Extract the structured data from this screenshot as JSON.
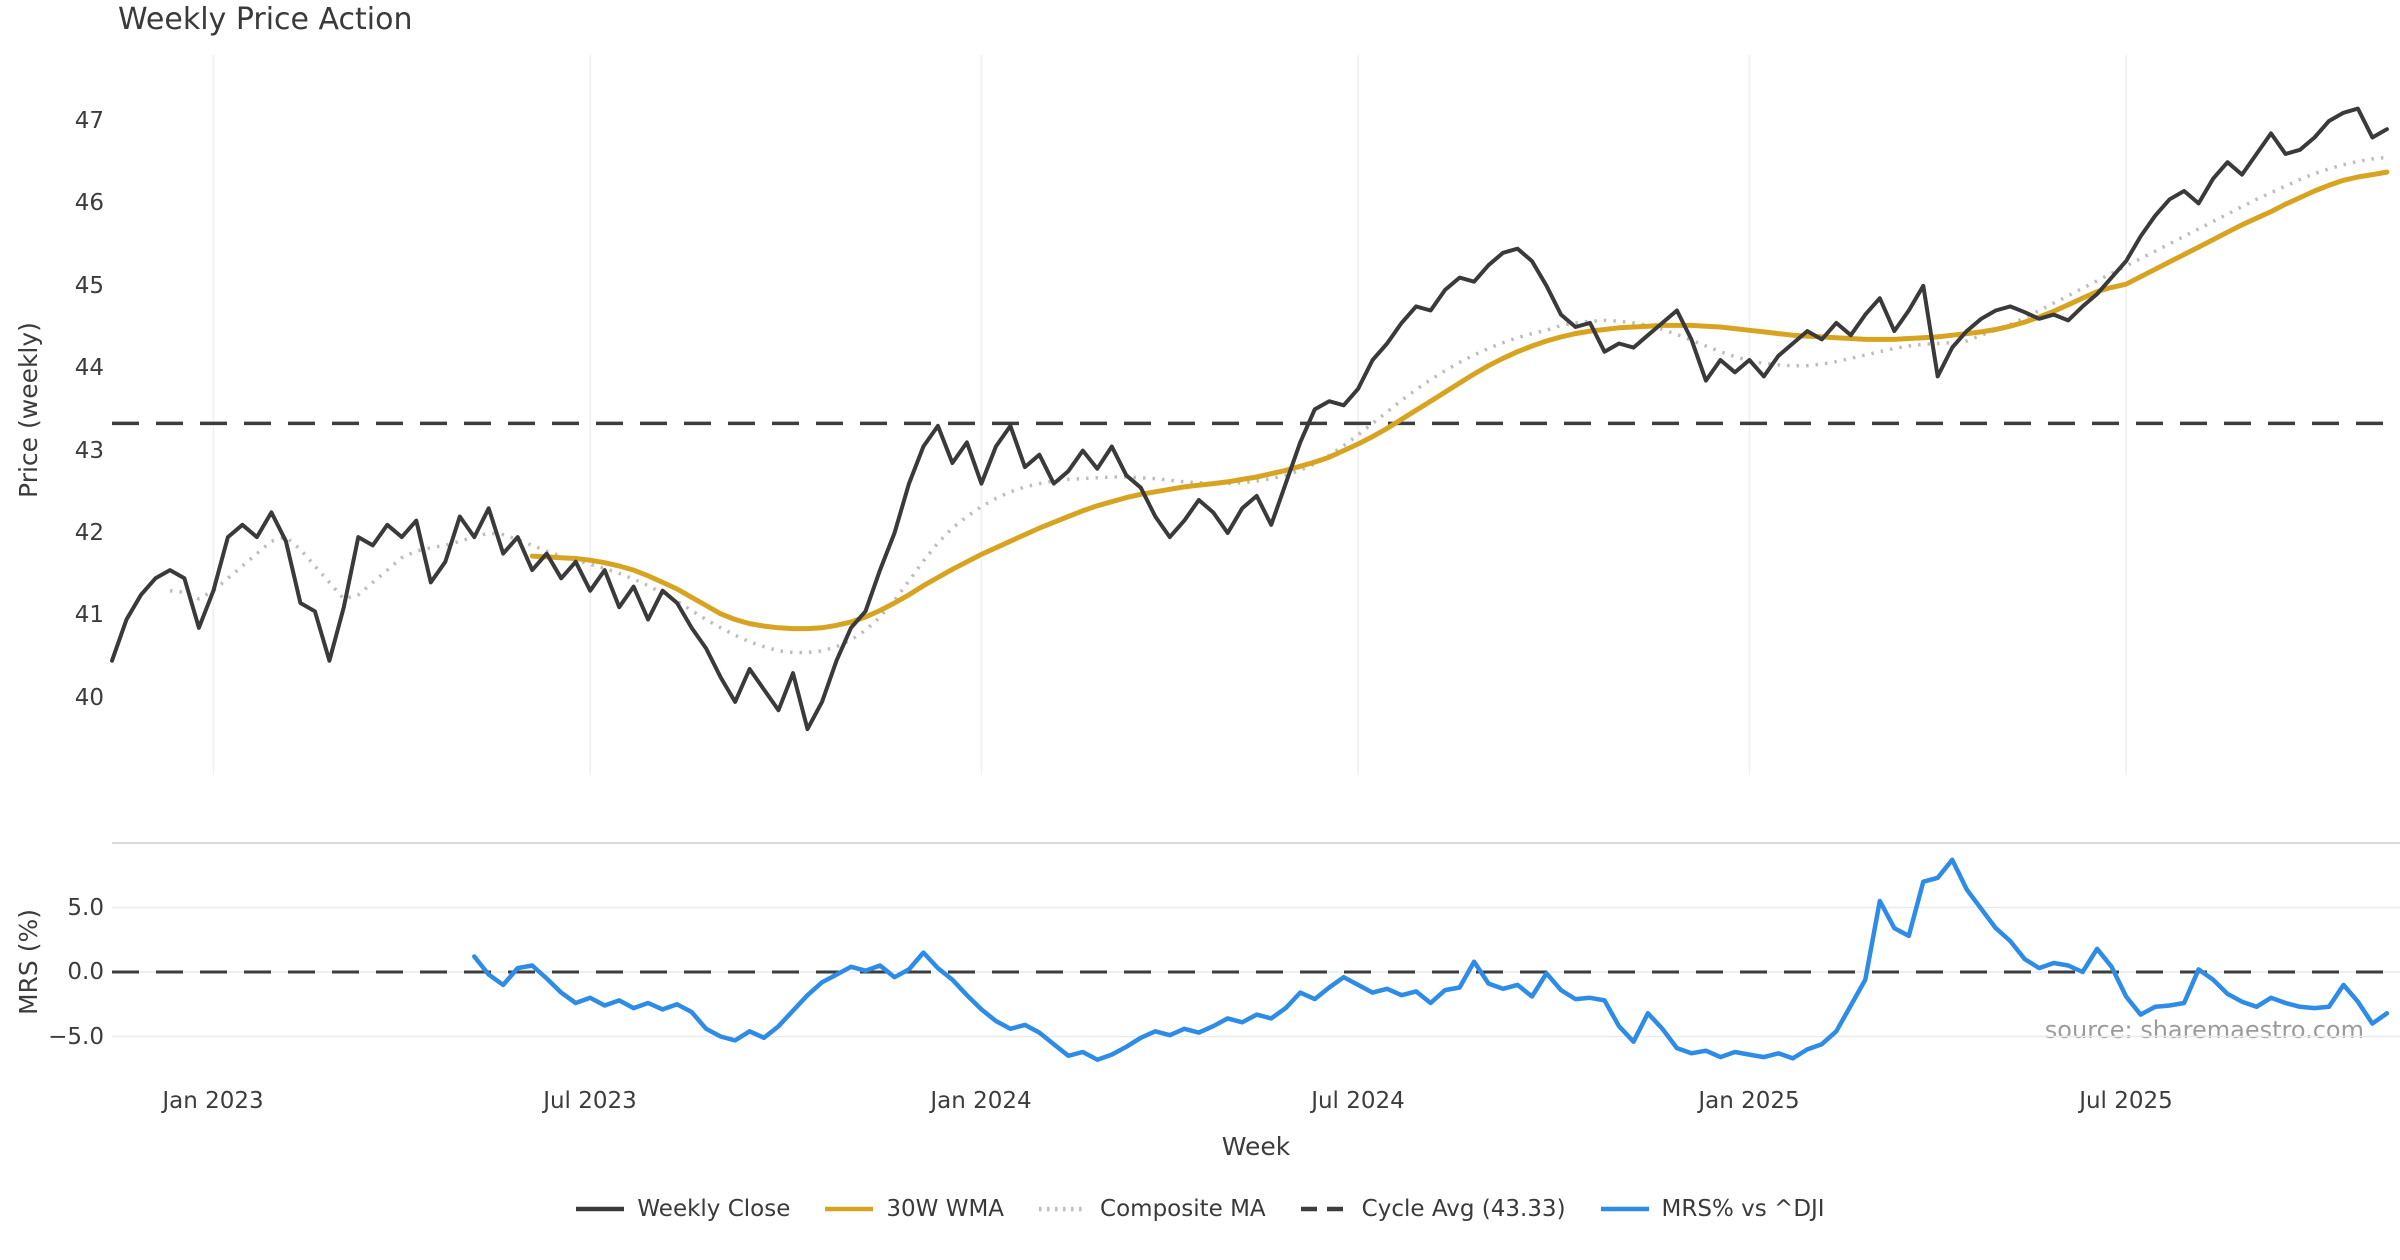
{
  "title": "Weekly Price Action",
  "source_credit": "source: sharemaestro.com",
  "colors": {
    "close": "#3a3a3a",
    "wma": "#d7a422",
    "composite": "#bdbdbd",
    "cycle_avg": "#3d3d3d",
    "mrs": "#2e8ce6",
    "vertical_grid": "#eef0f4",
    "mrs_grid": "#eaeaea",
    "mrs_grid_top": "#d4d4d4",
    "text": "#3c3c3c",
    "source_text": "#9b9b9b"
  },
  "legend": {
    "items": [
      {
        "id": "weekly-close",
        "label": "Weekly Close",
        "color": "#3a3a3a",
        "style": "solid"
      },
      {
        "id": "wma-30w",
        "label": "30W WMA",
        "color": "#d7a422",
        "style": "solid"
      },
      {
        "id": "composite-ma",
        "label": "Composite MA",
        "color": "#bdbdbd",
        "style": "dotted"
      },
      {
        "id": "cycle-avg",
        "label": "Cycle Avg (43.33)",
        "color": "#3d3d3d",
        "style": "dashed"
      },
      {
        "id": "mrs-vs-dji",
        "label": "MRS% vs ^DJI",
        "color": "#2e8ce6",
        "style": "solid"
      }
    ]
  },
  "chart_data": {
    "type": "line",
    "title": "Weekly Price Action",
    "xlabel": "Week",
    "x_tick_labels": [
      "Jan 2023",
      "Jul 2023",
      "Jan 2024",
      "Jul 2024",
      "Jan 2025",
      "Jul 2025"
    ],
    "x_tick_weeks": [
      7,
      33,
      60,
      86,
      113,
      139
    ],
    "x_unit": "week-index",
    "panels": [
      {
        "ylabel": "Price (weekly)",
        "ylim": [
          39.3,
          47.8
        ],
        "yticks": [
          40,
          41,
          42,
          43,
          44,
          45,
          46,
          47
        ],
        "cycle_avg": 43.33,
        "grid": "vertical-only",
        "series": [
          {
            "name": "Composite MA",
            "color": "#bdbdbd",
            "style": "dotted",
            "width": 3.5,
            "start_week": 4,
            "values": [
              41.3,
              41.28,
              41.2,
              41.3,
              41.45,
              41.6,
              41.75,
              41.9,
              41.95,
              41.8,
              41.6,
              41.4,
              41.2,
              41.25,
              41.4,
              41.55,
              41.7,
              41.78,
              41.82,
              41.85,
              41.9,
              41.95,
              42.0,
              41.98,
              41.92,
              41.85,
              41.78,
              41.72,
              41.67,
              41.62,
              41.57,
              41.51,
              41.44,
              41.36,
              41.27,
              41.17,
              41.06,
              40.95,
              40.85,
              40.76,
              40.68,
              40.62,
              40.57,
              40.55,
              40.55,
              40.57,
              40.62,
              40.7,
              40.82,
              40.98,
              41.18,
              41.42,
              41.66,
              41.88,
              42.06,
              42.2,
              42.32,
              42.42,
              42.5,
              42.56,
              42.6,
              42.63,
              42.65,
              42.66,
              42.67,
              42.68,
              42.68,
              42.67,
              42.66,
              42.64,
              42.62,
              42.61,
              42.6,
              42.6,
              42.61,
              42.63,
              42.66,
              42.7,
              42.76,
              42.84,
              42.94,
              43.06,
              43.19,
              43.33,
              43.47,
              43.61,
              43.74,
              43.86,
              43.97,
              44.07,
              44.16,
              44.24,
              44.31,
              44.37,
              44.42,
              44.46,
              44.52,
              44.55,
              44.57,
              44.58,
              44.57,
              44.55,
              44.52,
              44.47,
              44.41,
              44.34,
              44.27,
              44.2,
              44.14,
              44.09,
              44.06,
              44.04,
              44.03,
              44.03,
              44.05,
              44.08,
              44.12,
              44.16,
              44.2,
              44.24,
              44.27,
              44.29,
              44.3,
              44.31,
              44.33,
              44.4,
              44.46,
              44.53,
              44.61,
              44.7,
              44.79,
              44.88,
              44.97,
              45.06,
              45.15,
              45.24,
              45.33,
              45.42,
              45.51,
              45.6,
              45.69,
              45.78,
              45.87,
              45.96,
              46.05,
              46.13,
              46.21,
              46.29,
              46.36,
              46.42,
              46.47,
              46.51,
              46.54,
              46.56
            ]
          },
          {
            "name": "30W WMA",
            "color": "#d7a422",
            "style": "solid",
            "width": 5,
            "start_week": 29,
            "values": [
              41.72,
              41.71,
              41.7,
              41.69,
              41.67,
              41.64,
              41.6,
              41.55,
              41.48,
              41.4,
              41.32,
              41.22,
              41.12,
              41.02,
              40.95,
              40.9,
              40.87,
              40.85,
              40.84,
              40.84,
              40.85,
              40.88,
              40.92,
              40.98,
              41.06,
              41.15,
              41.25,
              41.36,
              41.46,
              41.56,
              41.65,
              41.74,
              41.82,
              41.9,
              41.98,
              42.06,
              42.13,
              42.2,
              42.27,
              42.33,
              42.38,
              42.43,
              42.47,
              42.5,
              42.53,
              42.56,
              42.58,
              42.6,
              42.62,
              42.65,
              42.68,
              42.72,
              42.76,
              42.81,
              42.86,
              42.92,
              43.0,
              43.08,
              43.17,
              43.27,
              43.38,
              43.49,
              43.6,
              43.71,
              43.82,
              43.93,
              44.03,
              44.12,
              44.2,
              44.27,
              44.33,
              44.38,
              44.42,
              44.45,
              44.47,
              44.49,
              44.5,
              44.51,
              44.52,
              44.52,
              44.52,
              44.51,
              44.5,
              44.48,
              44.46,
              44.44,
              44.42,
              44.4,
              44.39,
              44.38,
              44.37,
              44.36,
              44.35,
              44.35,
              44.35,
              44.36,
              44.37,
              44.38,
              44.4,
              44.42,
              44.44,
              44.47,
              44.51,
              44.56,
              44.62,
              44.69,
              44.77,
              44.85,
              44.93,
              44.98,
              45.02,
              45.11,
              45.2,
              45.29,
              45.38,
              45.47,
              45.56,
              45.65,
              45.74,
              45.82,
              45.9,
              45.99,
              46.07,
              46.15,
              46.22,
              46.28,
              46.32,
              46.35,
              46.38
            ]
          },
          {
            "name": "Weekly Close",
            "color": "#3a3a3a",
            "style": "solid",
            "width": 4,
            "start_week": 0,
            "values": [
              40.45,
              40.95,
              41.25,
              41.45,
              41.55,
              41.45,
              40.85,
              41.3,
              41.95,
              42.1,
              41.95,
              42.25,
              41.9,
              41.15,
              41.05,
              40.45,
              41.1,
              41.95,
              41.85,
              42.1,
              41.95,
              42.15,
              41.4,
              41.65,
              42.2,
              41.95,
              42.3,
              41.75,
              41.95,
              41.55,
              41.75,
              41.45,
              41.65,
              41.3,
              41.55,
              41.1,
              41.35,
              40.95,
              41.3,
              41.15,
              40.85,
              40.6,
              40.25,
              39.95,
              40.35,
              40.1,
              39.85,
              40.3,
              39.62,
              39.95,
              40.45,
              40.85,
              41.05,
              41.55,
              42.0,
              42.6,
              43.05,
              43.3,
              42.85,
              43.1,
              42.6,
              43.05,
              43.3,
              42.8,
              42.95,
              42.6,
              42.75,
              43.0,
              42.78,
              43.05,
              42.7,
              42.55,
              42.2,
              41.95,
              42.15,
              42.4,
              42.25,
              42.0,
              42.3,
              42.45,
              42.1,
              42.6,
              43.1,
              43.5,
              43.6,
              43.55,
              43.75,
              44.1,
              44.3,
              44.55,
              44.75,
              44.7,
              44.95,
              45.1,
              45.05,
              45.25,
              45.4,
              45.45,
              45.3,
              45.0,
              44.65,
              44.5,
              44.55,
              44.2,
              44.3,
              44.25,
              44.4,
              44.55,
              44.7,
              44.35,
              43.85,
              44.1,
              43.95,
              44.1,
              43.9,
              44.15,
              44.3,
              44.45,
              44.35,
              44.55,
              44.4,
              44.65,
              44.85,
              44.45,
              44.7,
              45.0,
              43.9,
              44.25,
              44.45,
              44.6,
              44.7,
              44.75,
              44.68,
              44.6,
              44.65,
              44.58,
              44.75,
              44.9,
              45.1,
              45.3,
              45.6,
              45.85,
              46.05,
              46.15,
              46.0,
              46.3,
              46.5,
              46.35,
              46.6,
              46.85,
              46.6,
              46.65,
              46.8,
              47.0,
              47.1,
              47.15,
              46.8,
              46.9
            ]
          }
        ]
      },
      {
        "ylabel": "MRS (%)",
        "ytick_labels": [
          "5.0",
          "0.0",
          "−5.0"
        ],
        "ytick_values": [
          5,
          0,
          -5
        ],
        "gridline_values": [
          10,
          5,
          0,
          -5
        ],
        "zero_line": 0,
        "series": [
          {
            "name": "MRS% vs ^DJI",
            "color": "#2e8ce6",
            "style": "solid",
            "width": 4.5,
            "start_week": 25,
            "values": [
              1.2,
              -0.2,
              -1.0,
              0.3,
              0.5,
              -0.5,
              -1.6,
              -2.4,
              -2.0,
              -2.6,
              -2.2,
              -2.8,
              -2.4,
              -2.9,
              -2.5,
              -3.1,
              -4.4,
              -5.0,
              -5.3,
              -4.6,
              -5.1,
              -4.2,
              -3.0,
              -1.8,
              -0.8,
              -0.2,
              0.4,
              0.1,
              0.5,
              -0.4,
              0.2,
              1.5,
              0.3,
              -0.6,
              -1.8,
              -2.9,
              -3.8,
              -4.4,
              -4.1,
              -4.7,
              -5.6,
              -6.5,
              -6.2,
              -6.8,
              -6.4,
              -5.8,
              -5.1,
              -4.6,
              -4.9,
              -4.4,
              -4.7,
              -4.2,
              -3.6,
              -3.9,
              -3.3,
              -3.6,
              -2.8,
              -1.6,
              -2.1,
              -1.2,
              -0.4,
              -1.0,
              -1.6,
              -1.3,
              -1.8,
              -1.5,
              -2.4,
              -1.4,
              -1.2,
              0.8,
              -0.9,
              -1.3,
              -1.0,
              -1.9,
              -0.1,
              -1.4,
              -2.1,
              -2.0,
              -2.2,
              -4.2,
              -5.4,
              -3.2,
              -4.4,
              -5.9,
              -6.3,
              -6.1,
              -6.6,
              -6.2,
              -6.4,
              -6.6,
              -6.3,
              -6.7,
              -6.0,
              -5.6,
              -4.6,
              -2.6,
              -0.6,
              5.5,
              3.4,
              2.8,
              7.0,
              7.3,
              8.7,
              6.4,
              4.9,
              3.4,
              2.4,
              1.0,
              0.3,
              0.7,
              0.5,
              0.0,
              1.8,
              0.4,
              -1.9,
              -3.3,
              -2.7,
              -2.6,
              -2.4,
              0.2,
              -0.6,
              -1.7,
              -2.3,
              -2.7,
              -2.0,
              -2.4,
              -2.7,
              -2.8,
              -2.7,
              -1.0,
              -2.3,
              -4.0,
              -3.2
            ]
          }
        ]
      }
    ]
  }
}
